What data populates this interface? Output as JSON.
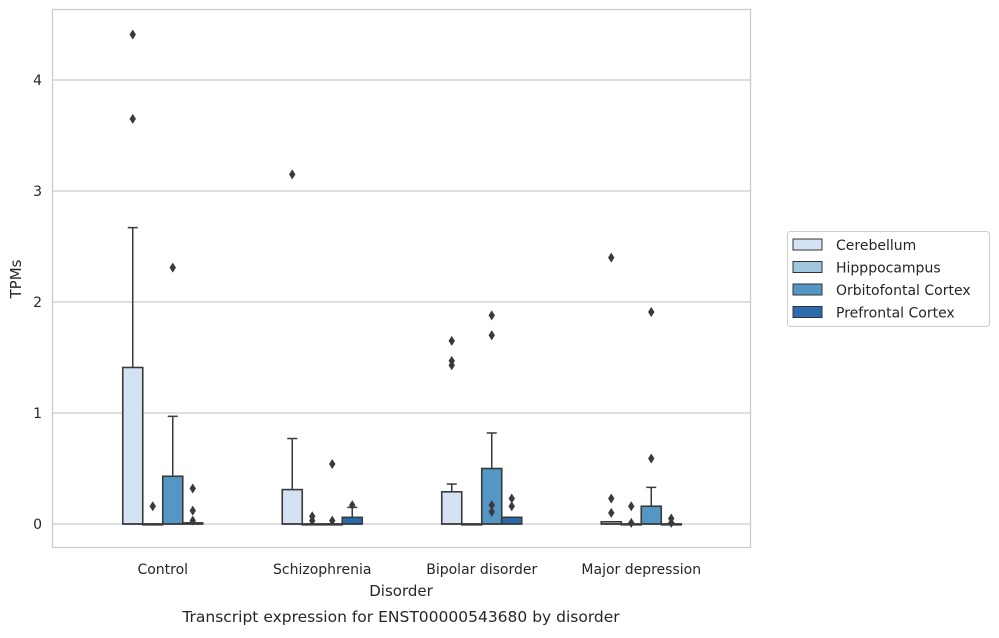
{
  "chart_data": {
    "type": "box",
    "categories": [
      "Control",
      "Schizophrenia",
      "Bipolar disorder",
      "Major depression"
    ],
    "xlabel": "Disorder",
    "ylabel": "TPMs",
    "caption": "Transcript expression for ENST00000543680 by disorder",
    "ylim": [
      -0.22,
      4.65
    ],
    "yticks": [
      0,
      1,
      2,
      3,
      4
    ],
    "grid": "horizontal",
    "legend_position": "right",
    "series": [
      {
        "name": "Cerebellum",
        "color": "#d4e3f3",
        "boxes": [
          {
            "q1": 0,
            "median": 0,
            "q3": 1.41,
            "whisker_low": 0,
            "whisker_high": 2.67,
            "outliers": [
              3.65,
              4.41
            ]
          },
          {
            "q1": 0,
            "median": 0,
            "q3": 0.31,
            "whisker_low": 0,
            "whisker_high": 0.77,
            "outliers": [
              3.15
            ]
          },
          {
            "q1": 0,
            "median": 0,
            "q3": 0.29,
            "whisker_low": 0,
            "whisker_high": 0.36,
            "outliers": [
              1.43,
              1.47,
              1.65
            ]
          },
          {
            "q1": 0,
            "median": 0,
            "q3": 0.02,
            "whisker_low": 0,
            "whisker_high": 0.02,
            "outliers": [
              0.1,
              0.23,
              2.4
            ]
          }
        ]
      },
      {
        "name": "Hipppocampus",
        "color": "#9fc5df",
        "boxes": [
          {
            "q1": 0,
            "median": 0,
            "q3": 0,
            "whisker_low": 0,
            "whisker_high": 0,
            "outliers": [
              0.16
            ]
          },
          {
            "q1": 0,
            "median": 0,
            "q3": 0,
            "whisker_low": 0,
            "whisker_high": 0,
            "outliers": [
              0.03,
              0.07
            ]
          },
          {
            "q1": 0,
            "median": 0,
            "q3": 0,
            "whisker_low": 0,
            "whisker_high": 0,
            "outliers": []
          },
          {
            "q1": 0,
            "median": 0,
            "q3": 0,
            "whisker_low": 0,
            "whisker_high": 0,
            "outliers": [
              0.01,
              0.16
            ]
          }
        ]
      },
      {
        "name": "Orbitofontal Cortex",
        "color": "#5496c4",
        "boxes": [
          {
            "q1": 0,
            "median": 0,
            "q3": 0.43,
            "whisker_low": 0,
            "whisker_high": 0.97,
            "outliers": [
              2.31
            ]
          },
          {
            "q1": 0,
            "median": 0,
            "q3": 0,
            "whisker_low": 0,
            "whisker_high": 0,
            "outliers": [
              0.03,
              0.54
            ]
          },
          {
            "q1": 0,
            "median": 0,
            "q3": 0.5,
            "whisker_low": 0,
            "whisker_high": 0.82,
            "outliers": [
              0.11,
              0.17,
              1.7,
              1.88
            ]
          },
          {
            "q1": 0,
            "median": 0,
            "q3": 0.16,
            "whisker_low": 0,
            "whisker_high": 0.33,
            "outliers": [
              0.59,
              1.91
            ]
          }
        ]
      },
      {
        "name": "Prefrontal Cortex",
        "color": "#2a6bad",
        "boxes": [
          {
            "q1": 0,
            "median": 0,
            "q3": 0.01,
            "whisker_low": 0,
            "whisker_high": 0.01,
            "outliers": [
              0.03,
              0.12,
              0.32
            ]
          },
          {
            "q1": 0,
            "median": 0,
            "q3": 0.06,
            "whisker_low": 0,
            "whisker_high": 0.15,
            "outliers": [
              0.17
            ]
          },
          {
            "q1": 0,
            "median": 0,
            "q3": 0.06,
            "whisker_low": 0,
            "whisker_high": 0.06,
            "outliers": [
              0.16,
              0.23
            ]
          },
          {
            "q1": 0,
            "median": 0,
            "q3": 0,
            "whisker_low": 0,
            "whisker_high": 0,
            "outliers": [
              0.01,
              0.05
            ]
          }
        ]
      }
    ]
  }
}
